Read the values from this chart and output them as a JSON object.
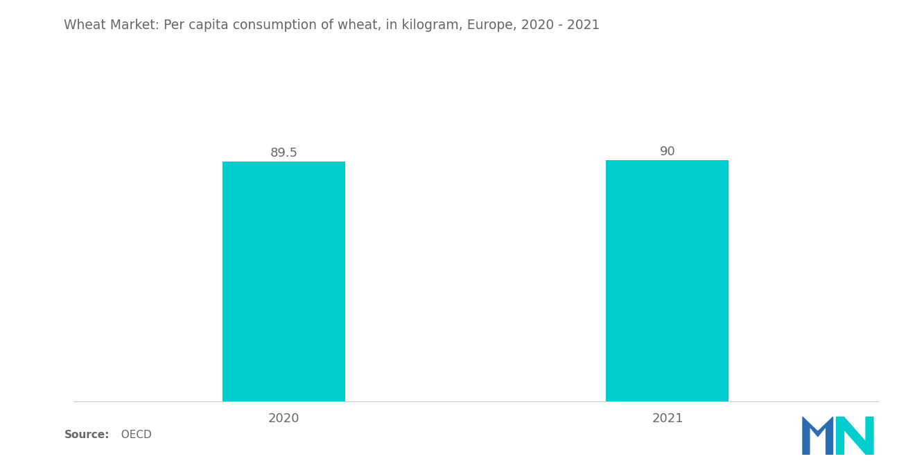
{
  "title": "Wheat Market: Per capita consumption of wheat, in kilogram, Europe, 2020 - 2021",
  "categories": [
    "2020",
    "2021"
  ],
  "values": [
    89.5,
    90
  ],
  "bar_color": "#00CDCD",
  "value_labels": [
    "89.5",
    "90"
  ],
  "source_bold": "Source:",
  "source_plain": "  OECD",
  "background_color": "#ffffff",
  "title_fontsize": 13.5,
  "label_fontsize": 13,
  "value_fontsize": 13,
  "source_fontsize": 11,
  "ylim": [
    0,
    100
  ],
  "bar_width": 0.32,
  "text_color": "#666666"
}
